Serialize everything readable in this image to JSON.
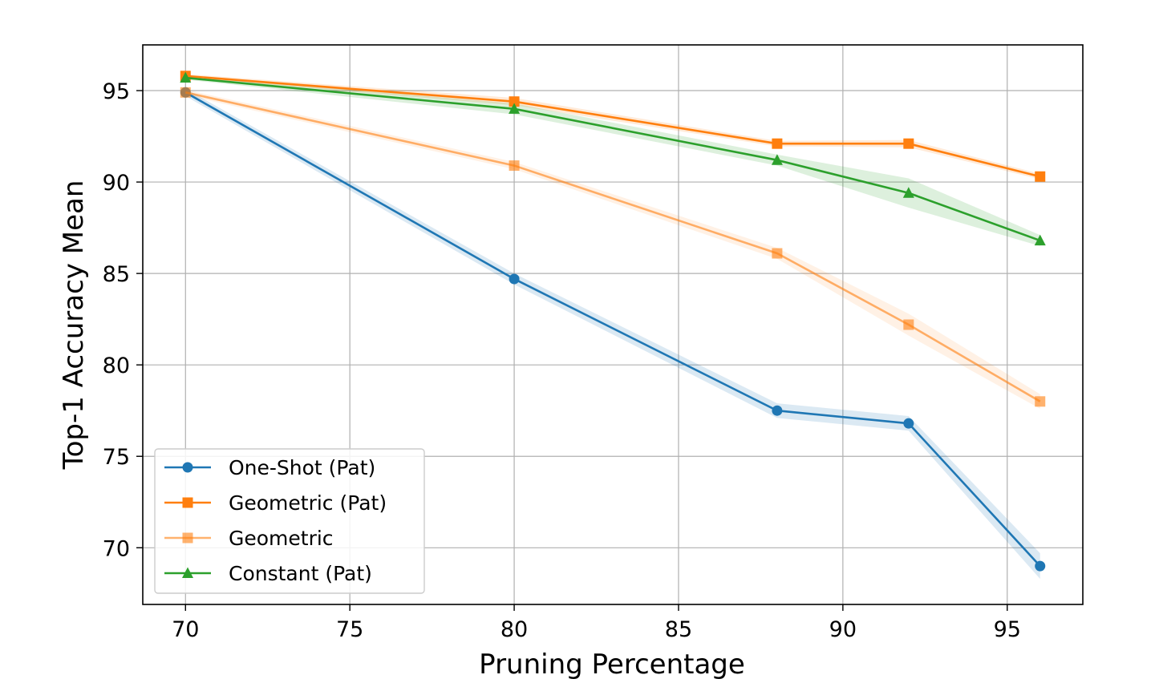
{
  "chart_data": {
    "type": "line",
    "title": "",
    "xlabel": "Pruning Percentage",
    "ylabel": "Top-1 Accuracy Mean",
    "xlim": [
      68.7,
      97.3
    ],
    "ylim": [
      66.9,
      97.5
    ],
    "xticks": [
      70,
      75,
      80,
      85,
      90,
      95
    ],
    "yticks": [
      70,
      75,
      80,
      85,
      90,
      95
    ],
    "grid": true,
    "legend_position": "lower-left",
    "x": [
      70,
      80,
      88,
      92,
      96
    ],
    "series": [
      {
        "name": "One-Shot (Pat)",
        "color": "#1f77b4",
        "marker": "circle",
        "alpha": 1.0,
        "values": [
          94.9,
          84.7,
          77.5,
          76.8,
          69.0
        ],
        "band": [
          0.2,
          0.3,
          0.4,
          0.4,
          0.7
        ]
      },
      {
        "name": "Geometric (Pat)",
        "color": "#ff7f0e",
        "marker": "square",
        "alpha": 1.0,
        "values": [
          95.8,
          94.4,
          92.1,
          92.1,
          90.3
        ],
        "band": [
          0.1,
          0.2,
          0.15,
          0.2,
          0.15
        ]
      },
      {
        "name": "Geometric",
        "color": "#ff7f0e",
        "marker": "square",
        "alpha": 0.6,
        "values": [
          94.9,
          90.9,
          86.1,
          82.2,
          78.0
        ],
        "band": [
          0.15,
          0.2,
          0.3,
          0.6,
          0.4
        ]
      },
      {
        "name": "Constant (Pat)",
        "color": "#2ca02c",
        "marker": "triangle",
        "alpha": 1.0,
        "values": [
          95.7,
          94.0,
          91.2,
          89.4,
          86.8
        ],
        "band": [
          0.1,
          0.3,
          0.3,
          0.8,
          0.3
        ]
      }
    ]
  }
}
